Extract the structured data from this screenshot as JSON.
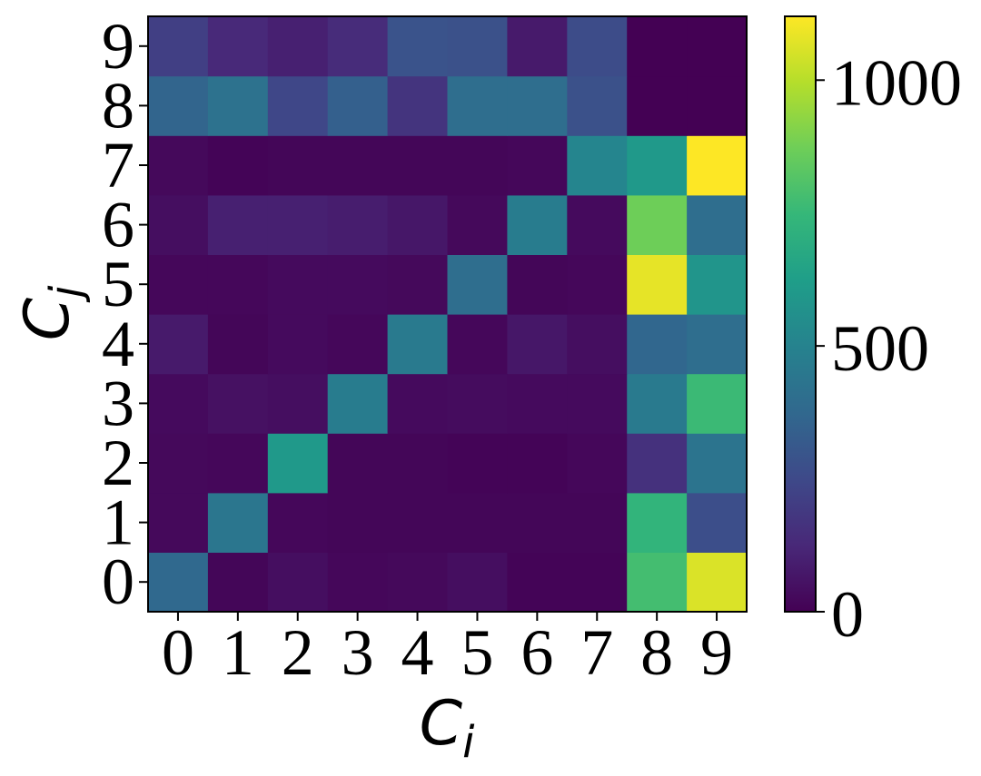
{
  "chart_data": {
    "type": "heatmap",
    "title": "",
    "xlabel": "C",
    "xlabel_sub": "i",
    "ylabel": "C",
    "ylabel_sub": "j",
    "x_categories": [
      "0",
      "1",
      "2",
      "3",
      "4",
      "5",
      "6",
      "7",
      "8",
      "9"
    ],
    "y_categories": [
      "0",
      "1",
      "2",
      "3",
      "4",
      "5",
      "6",
      "7",
      "8",
      "9"
    ],
    "colormap": "viridis",
    "value_range": [
      0,
      1120
    ],
    "colorbar_ticks": [
      0,
      500,
      1000
    ],
    "colorbar_tick_labels": [
      "0",
      "500",
      "1000"
    ],
    "grid": false,
    "colorbar_position": "right",
    "values": [
      [
        380,
        15,
        40,
        20,
        25,
        40,
        10,
        10,
        780,
        1060
      ],
      [
        25,
        440,
        20,
        15,
        15,
        15,
        15,
        15,
        730,
        270
      ],
      [
        25,
        20,
        600,
        15,
        15,
        10,
        10,
        20,
        160,
        430
      ],
      [
        30,
        50,
        40,
        470,
        30,
        35,
        30,
        30,
        460,
        760
      ],
      [
        80,
        15,
        30,
        20,
        460,
        20,
        70,
        40,
        370,
        400
      ],
      [
        20,
        20,
        30,
        30,
        25,
        400,
        15,
        20,
        1080,
        580
      ],
      [
        40,
        100,
        100,
        90,
        70,
        25,
        470,
        30,
        870,
        400
      ],
      [
        25,
        10,
        15,
        15,
        15,
        15,
        20,
        510,
        600,
        1120
      ],
      [
        360,
        420,
        240,
        340,
        170,
        400,
        400,
        280,
        0,
        0
      ],
      [
        210,
        130,
        100,
        140,
        290,
        280,
        80,
        260,
        0,
        0
      ]
    ]
  }
}
